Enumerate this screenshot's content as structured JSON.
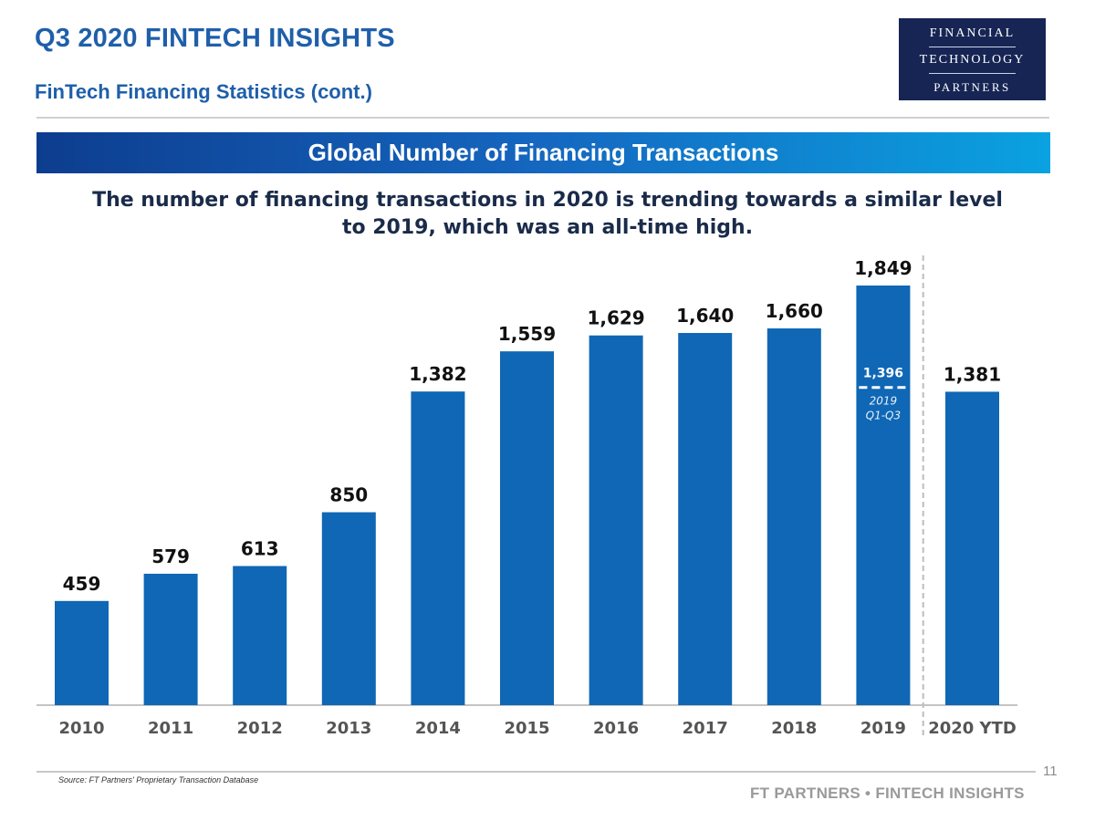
{
  "header": {
    "title": "Q3 2020 FINTECH INSIGHTS",
    "subtitle": "FinTech Financing Statistics (cont.)"
  },
  "logo": {
    "line1": "FINANCIAL",
    "line2": "TECHNOLOGY",
    "line3": "PARTNERS",
    "background": "#172554"
  },
  "banner": {
    "title": "Global Number of Financing Transactions"
  },
  "caption": "The number of financing transactions in 2020 is trending towards a similar level to 2019, which was an all-time high.",
  "footer": {
    "source": "Source: FT Partners' Proprietary Transaction Database",
    "page_number": "11",
    "brand": "FT PARTNERS • FINTECH INSIGHTS"
  },
  "colors": {
    "bar": "#0f67b5",
    "accent": "#1f5faa",
    "divider": "#bdbdbd"
  },
  "chart_data": {
    "type": "bar",
    "title": "Global Number of Financing Transactions",
    "xlabel": "",
    "ylabel": "",
    "ylim": [
      0,
      1849
    ],
    "categories": [
      "2010",
      "2011",
      "2012",
      "2013",
      "2014",
      "2015",
      "2016",
      "2017",
      "2018",
      "2019",
      "2020 YTD"
    ],
    "values": [
      459,
      579,
      613,
      850,
      1382,
      1559,
      1629,
      1640,
      1660,
      1849,
      1381
    ],
    "value_labels": [
      "459",
      "579",
      "613",
      "850",
      "1,382",
      "1,559",
      "1,629",
      "1,640",
      "1,660",
      "1,849",
      "1,381"
    ],
    "annotation": {
      "category": "2019",
      "value": 1396,
      "value_label": "1,396",
      "line1": "2019",
      "line2": "Q1-Q3"
    },
    "divider_after": "2019",
    "grid": false
  }
}
